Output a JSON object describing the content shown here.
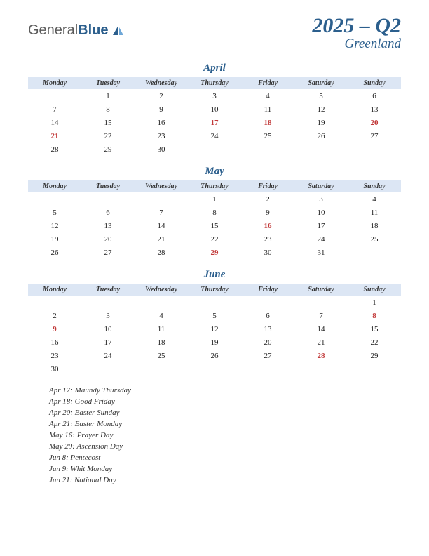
{
  "logo": {
    "general": "General",
    "blue": "Blue"
  },
  "title": {
    "main": "2025 – Q2",
    "sub": "Greenland"
  },
  "colors": {
    "brand": "#2c5f8d",
    "header_bg": "#dce6f4",
    "holiday_text": "#c23a3a",
    "text": "#222222",
    "background": "#ffffff"
  },
  "day_headers": [
    "Monday",
    "Tuesday",
    "Wednesday",
    "Thursday",
    "Friday",
    "Saturday",
    "Sunday"
  ],
  "months": [
    {
      "name": "April",
      "weeks": [
        [
          "",
          "1",
          "2",
          "3",
          "4",
          "5",
          "6"
        ],
        [
          "7",
          "8",
          "9",
          "10",
          "11",
          "12",
          "13"
        ],
        [
          "14",
          "15",
          "16",
          "17",
          "18",
          "19",
          "20"
        ],
        [
          "21",
          "22",
          "23",
          "24",
          "25",
          "26",
          "27"
        ],
        [
          "28",
          "29",
          "30",
          "",
          "",
          "",
          ""
        ]
      ],
      "holidays_cells": [
        [
          2,
          3
        ],
        [
          2,
          4
        ],
        [
          2,
          6
        ],
        [
          3,
          0
        ]
      ]
    },
    {
      "name": "May",
      "weeks": [
        [
          "",
          "",
          "",
          "1",
          "2",
          "3",
          "4"
        ],
        [
          "5",
          "6",
          "7",
          "8",
          "9",
          "10",
          "11"
        ],
        [
          "12",
          "13",
          "14",
          "15",
          "16",
          "17",
          "18"
        ],
        [
          "19",
          "20",
          "21",
          "22",
          "23",
          "24",
          "25"
        ],
        [
          "26",
          "27",
          "28",
          "29",
          "30",
          "31",
          ""
        ]
      ],
      "holidays_cells": [
        [
          2,
          4
        ],
        [
          4,
          3
        ]
      ]
    },
    {
      "name": "June",
      "weeks": [
        [
          "",
          "",
          "",
          "",
          "",
          "",
          "1"
        ],
        [
          "2",
          "3",
          "4",
          "5",
          "6",
          "7",
          "8"
        ],
        [
          "9",
          "10",
          "11",
          "12",
          "13",
          "14",
          "15"
        ],
        [
          "16",
          "17",
          "18",
          "19",
          "20",
          "21",
          "22"
        ],
        [
          "23",
          "24",
          "25",
          "26",
          "27",
          "28",
          "29"
        ],
        [
          "30",
          "",
          "",
          "",
          "",
          "",
          ""
        ]
      ],
      "holidays_cells": [
        [
          1,
          6
        ],
        [
          2,
          0
        ],
        [
          4,
          5
        ]
      ]
    }
  ],
  "holiday_list": [
    "Apr 17: Maundy Thursday",
    "Apr 18: Good Friday",
    "Apr 20: Easter Sunday",
    "Apr 21: Easter Monday",
    "May 16: Prayer Day",
    "May 29: Ascension Day",
    "Jun 8: Pentecost",
    "Jun 9: Whit Monday",
    "Jun 21: National Day"
  ]
}
